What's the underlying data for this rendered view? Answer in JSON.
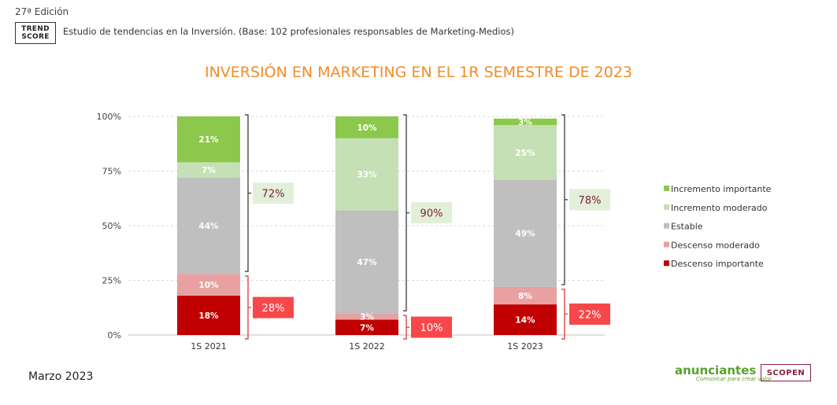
{
  "header": {
    "edition": "27ª Edición",
    "logo_line1": "TREND",
    "logo_line2": "SCORE",
    "subtitle": "Estudio de tendencias en la Inversión. (Base: 102 profesionales responsables de Marketing-Medios)"
  },
  "footer": {
    "date": "Marzo 2023",
    "brand_anunciantes": "anunciantes",
    "brand_anunciantes_tagline": "Comunicar para crear valor",
    "brand_scopen": "SCOPEN"
  },
  "colors": {
    "title": "#F28C28",
    "increase_total_bg": "#E2EFD9",
    "decrease_total_bg": "#F8474A",
    "increase_bracket": "#555555",
    "decrease_bracket": "#E05050"
  },
  "chart_data": {
    "type": "bar",
    "stacked": true,
    "percent": true,
    "title": "INVERSIÓN EN MARKETING EN EL 1R SEMESTRE DE 2023",
    "categories": [
      "1S 2021",
      "1S 2022",
      "1S 2023"
    ],
    "y_ticks": [
      "0%",
      "25%",
      "50%",
      "75%",
      "100%"
    ],
    "ylim": [
      0,
      100
    ],
    "grid": true,
    "legend_position": "right",
    "series": [
      {
        "name": "Descenso importante",
        "color": "#C00000",
        "values": [
          18,
          7,
          14
        ],
        "labels": [
          "18%",
          "7%",
          "14%"
        ]
      },
      {
        "name": "Descenso moderado",
        "color": "#E8A0A0",
        "values": [
          10,
          3,
          8
        ],
        "labels": [
          "10%",
          "3%",
          "8%"
        ]
      },
      {
        "name": "Estable",
        "color": "#BFBFBF",
        "values": [
          44,
          47,
          49
        ],
        "labels": [
          "44%",
          "47%",
          "49%"
        ]
      },
      {
        "name": "Incremento moderado",
        "color": "#C5E0B4",
        "values": [
          7,
          33,
          25
        ],
        "labels": [
          "7%",
          "33%",
          "25%"
        ]
      },
      {
        "name": "Incremento importante",
        "color": "#8CC84B",
        "values": [
          21,
          10,
          3
        ],
        "labels": [
          "21%",
          "10%",
          "3%"
        ]
      }
    ],
    "legend_order": [
      "Incremento importante",
      "Incremento moderado",
      "Estable",
      "Descenso moderado",
      "Descenso importante"
    ],
    "annotations": {
      "non_decrease_totals": [
        "72%",
        "90%",
        "78%"
      ],
      "decrease_totals": [
        "28%",
        "10%",
        "22%"
      ]
    }
  }
}
